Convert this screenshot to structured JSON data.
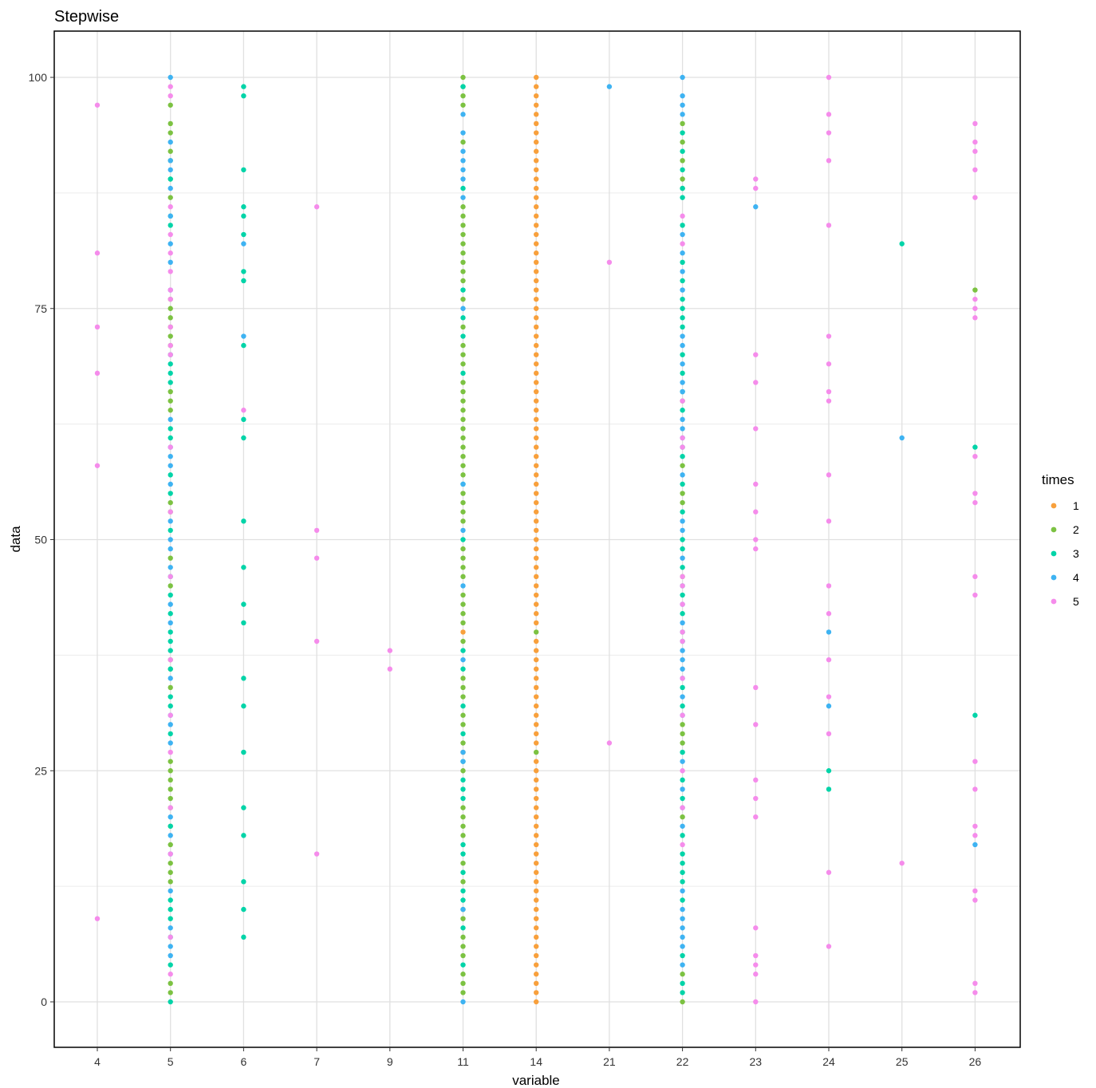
{
  "chart_data": {
    "type": "scatter",
    "title": "Stepwise",
    "xlabel": "variable",
    "ylabel": "data",
    "x_axis_type": "categorical",
    "categories": [
      "4",
      "5",
      "6",
      "7",
      "9",
      "11",
      "14",
      "21",
      "22",
      "23",
      "24",
      "25",
      "26"
    ],
    "yticks": [
      0,
      25,
      50,
      75,
      100
    ],
    "ylim": [
      -5,
      105
    ],
    "grid": true,
    "legend": {
      "title": "times",
      "placement": "right",
      "entries": [
        "1",
        "2",
        "3",
        "4",
        "5"
      ]
    },
    "colors": {
      "1": "#F8A03C",
      "2": "#7CC242",
      "3": "#00D4A8",
      "4": "#3EB3F2",
      "5": "#F58CEB"
    },
    "series": [
      {
        "name": "1",
        "points": {
          "11": [
            27,
            40
          ],
          "14": [
            0,
            1,
            2,
            3,
            4,
            5,
            6,
            7,
            8,
            9,
            10,
            11,
            12,
            13,
            14,
            15,
            16,
            17,
            18,
            19,
            20,
            21,
            22,
            23,
            24,
            25,
            26,
            28,
            29,
            30,
            31,
            32,
            33,
            34,
            35,
            36,
            37,
            38,
            39,
            41,
            42,
            43,
            44,
            45,
            46,
            47,
            48,
            49,
            50,
            51,
            52,
            53,
            54,
            55,
            56,
            57,
            58,
            59,
            60,
            61,
            62,
            63,
            64,
            65,
            66,
            67,
            68,
            69,
            70,
            71,
            72,
            73,
            74,
            75,
            76,
            77,
            78,
            79,
            80,
            81,
            82,
            83,
            84,
            85,
            86,
            87,
            88,
            89,
            90,
            91,
            92,
            93,
            94,
            95,
            96,
            97,
            98,
            99,
            100
          ]
        }
      },
      {
        "name": "2",
        "points": {
          "5": [
            1,
            2,
            13,
            14,
            15,
            17,
            19,
            21,
            22,
            23,
            24,
            25,
            26,
            34,
            36,
            37,
            45,
            48,
            53,
            54,
            64,
            65,
            66,
            71,
            72,
            73,
            74,
            75,
            76,
            87,
            89,
            91,
            92,
            94,
            95,
            97
          ],
          "11": [
            1,
            2,
            3,
            5,
            6,
            7,
            9,
            10,
            13,
            15,
            18,
            19,
            20,
            21,
            25,
            28,
            30,
            31,
            33,
            34,
            35,
            39,
            41,
            42,
            43,
            44,
            46,
            47,
            48,
            49,
            52,
            53,
            54,
            55,
            57,
            58,
            59,
            60,
            61,
            62,
            63,
            64,
            65,
            66,
            67,
            69,
            70,
            71,
            73,
            76,
            78,
            79,
            80,
            81,
            82,
            83,
            84,
            85,
            86,
            93,
            97,
            98,
            99,
            100
          ],
          "14": [
            27,
            40
          ],
          "22": [
            0,
            3,
            20,
            28,
            29,
            30,
            46,
            54,
            55,
            58,
            65,
            88,
            89,
            91,
            93,
            95
          ],
          "26": [
            77
          ]
        }
      },
      {
        "name": "3",
        "points": {
          "5": [
            0,
            4,
            7,
            9,
            10,
            11,
            19,
            29,
            32,
            33,
            36,
            38,
            39,
            40,
            42,
            44,
            46,
            51,
            55,
            57,
            61,
            62,
            67,
            68,
            69,
            70,
            84,
            85,
            89
          ],
          "6": [
            7,
            10,
            13,
            18,
            21,
            27,
            32,
            35,
            41,
            43,
            47,
            52,
            61,
            63,
            71,
            78,
            79,
            83,
            85,
            86,
            90,
            98,
            99
          ],
          "11": [
            4,
            8,
            11,
            12,
            14,
            16,
            17,
            22,
            23,
            24,
            26,
            29,
            32,
            36,
            38,
            50,
            56,
            68,
            72,
            74,
            77,
            88,
            99
          ],
          "22": [
            1,
            2,
            5,
            11,
            13,
            14,
            15,
            16,
            18,
            22,
            24,
            27,
            32,
            34,
            39,
            40,
            42,
            44,
            45,
            47,
            49,
            50,
            53,
            56,
            59,
            60,
            64,
            66,
            68,
            70,
            73,
            74,
            75,
            76,
            78,
            80,
            84,
            87,
            88,
            90,
            92,
            94
          ],
          "24": [
            23,
            25
          ],
          "25": [
            82
          ],
          "26": [
            31,
            60
          ]
        }
      },
      {
        "name": "4",
        "points": {
          "5": [
            5,
            6,
            8,
            12,
            16,
            18,
            20,
            28,
            30,
            31,
            35,
            41,
            43,
            47,
            49,
            50,
            52,
            56,
            58,
            59,
            60,
            63,
            77,
            80,
            82,
            85,
            88,
            90,
            91,
            93,
            100
          ],
          "6": [
            72,
            82
          ],
          "11": [
            0,
            10,
            26,
            27,
            37,
            45,
            51,
            56,
            75,
            87,
            89,
            90,
            91,
            92,
            94,
            96
          ],
          "21": [
            99
          ],
          "22": [
            4,
            6,
            7,
            8,
            9,
            10,
            12,
            19,
            21,
            23,
            26,
            31,
            33,
            35,
            36,
            37,
            38,
            41,
            43,
            48,
            51,
            52,
            57,
            61,
            62,
            63,
            66,
            67,
            69,
            71,
            72,
            77,
            79,
            81,
            83,
            96,
            97,
            98,
            100
          ],
          "23": [
            86
          ],
          "24": [
            32,
            40
          ],
          "25": [
            61
          ],
          "26": [
            17
          ]
        }
      },
      {
        "name": "5",
        "points": {
          "4": [
            9,
            58,
            68,
            73,
            81,
            97
          ],
          "5": [
            3,
            7,
            16,
            21,
            27,
            31,
            37,
            46,
            53,
            60,
            70,
            71,
            73,
            76,
            77,
            79,
            81,
            83,
            86,
            98,
            99
          ],
          "6": [
            64
          ],
          "7": [
            16,
            39,
            48,
            51,
            86
          ],
          "9": [
            36,
            38
          ],
          "21": [
            28,
            80
          ],
          "22": [
            17,
            21,
            25,
            31,
            35,
            39,
            40,
            43,
            45,
            46,
            60,
            61,
            65,
            82,
            85
          ],
          "23": [
            0,
            3,
            4,
            5,
            8,
            20,
            22,
            24,
            30,
            34,
            49,
            50,
            53,
            56,
            62,
            67,
            70,
            88,
            89
          ],
          "24": [
            6,
            14,
            29,
            33,
            37,
            42,
            45,
            52,
            57,
            65,
            66,
            69,
            72,
            84,
            91,
            94,
            96,
            100
          ],
          "25": [
            15
          ],
          "26": [
            1,
            2,
            11,
            12,
            18,
            19,
            23,
            26,
            44,
            46,
            54,
            55,
            59,
            74,
            75,
            76,
            87,
            90,
            92,
            93,
            95
          ]
        }
      }
    ]
  }
}
